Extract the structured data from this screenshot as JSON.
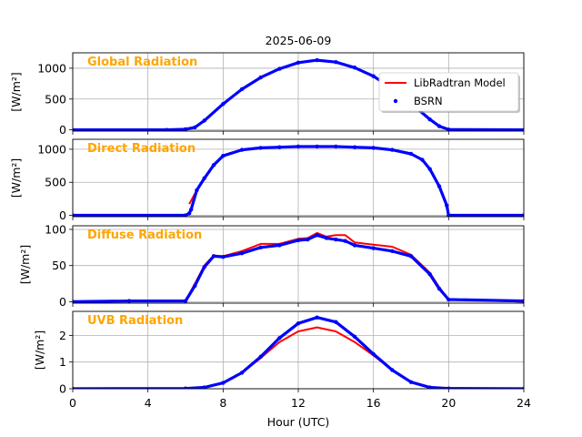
{
  "figure": {
    "title": "2025-06-09",
    "xlabel": "Hour (UTC)",
    "colors": {
      "model": "#ff0000",
      "observed": "#0000ff",
      "panel_title": "#ffa500",
      "grid": "#b0b0b0",
      "axes": "#000000"
    },
    "legend": {
      "location": "inside-right of first panel",
      "entries": [
        {
          "label": "LibRadtran Model",
          "style": "line",
          "color": "#ff0000"
        },
        {
          "label": "BSRN",
          "style": "dot",
          "color": "#0000ff"
        }
      ]
    }
  },
  "chart_data": [
    {
      "type": "line",
      "title": "Global Radiation",
      "xlabel": "Hour (UTC)",
      "ylabel": "[W/m²]",
      "xlim": [
        0,
        24
      ],
      "ylim": [
        -20,
        1250
      ],
      "xticks": [
        0,
        4,
        8,
        12,
        16,
        20,
        24
      ],
      "yticks": [
        0,
        500,
        1000
      ],
      "grid": true,
      "series": [
        {
          "name": "LibRadtran Model",
          "kind": "line",
          "x": [
            0,
            5,
            6,
            6.5,
            7,
            8,
            9,
            10,
            11,
            12,
            13,
            14,
            15,
            16,
            17,
            18,
            19,
            19.5,
            20,
            24
          ],
          "y": [
            0,
            0,
            10,
            40,
            150,
            420,
            660,
            850,
            990,
            1090,
            1130,
            1100,
            1010,
            870,
            670,
            430,
            170,
            60,
            5,
            0
          ]
        },
        {
          "name": "BSRN",
          "kind": "dots",
          "x": [
            0,
            5,
            6,
            6.5,
            7,
            8,
            9,
            10,
            11,
            12,
            13,
            14,
            15,
            16,
            17,
            18,
            19,
            19.5,
            20,
            24
          ],
          "y": [
            0,
            0,
            10,
            40,
            150,
            420,
            660,
            850,
            990,
            1090,
            1130,
            1100,
            1010,
            870,
            670,
            430,
            170,
            60,
            5,
            0
          ]
        }
      ]
    },
    {
      "type": "line",
      "title": "Direct Radiation",
      "xlabel": "Hour (UTC)",
      "ylabel": "[W/m²]",
      "xlim": [
        0,
        24
      ],
      "ylim": [
        -20,
        1150
      ],
      "xticks": [
        0,
        4,
        8,
        12,
        16,
        20,
        24
      ],
      "yticks": [
        0,
        500,
        1000
      ],
      "grid": true,
      "series": [
        {
          "name": "LibRadtran Model",
          "kind": "line",
          "x": [
            6.2,
            6.6,
            7,
            7.5,
            8,
            9,
            10,
            11,
            12,
            13,
            14,
            15,
            16,
            17,
            18,
            18.6,
            19,
            19.5,
            19.9,
            20
          ],
          "y": [
            170,
            380,
            560,
            760,
            900,
            990,
            1020,
            1030,
            1040,
            1040,
            1040,
            1030,
            1020,
            990,
            930,
            840,
            700,
            440,
            150,
            0
          ]
        },
        {
          "name": "BSRN",
          "kind": "dots",
          "x": [
            0,
            6.0,
            6.2,
            6.3,
            6.6,
            7,
            7.5,
            8,
            9,
            10,
            11,
            12,
            13,
            14,
            15,
            16,
            17,
            18,
            18.6,
            19,
            19.5,
            19.9,
            20,
            24
          ],
          "y": [
            0,
            0,
            30,
            90,
            380,
            560,
            760,
            900,
            990,
            1020,
            1030,
            1040,
            1040,
            1040,
            1030,
            1020,
            990,
            930,
            840,
            700,
            440,
            150,
            0,
            0
          ]
        }
      ]
    },
    {
      "type": "line",
      "title": "Diffuse Radiation",
      "xlabel": "Hour (UTC)",
      "ylabel": "[W/m²]",
      "xlim": [
        0,
        24
      ],
      "ylim": [
        -2,
        105
      ],
      "xticks": [
        0,
        4,
        8,
        12,
        16,
        20,
        24
      ],
      "yticks": [
        0,
        50,
        100
      ],
      "grid": true,
      "series": [
        {
          "name": "LibRadtran Model",
          "kind": "line",
          "x": [
            0,
            6,
            6.5,
            7,
            7.5,
            8,
            9,
            10,
            11,
            12,
            12.5,
            13,
            13.5,
            14,
            14.5,
            15,
            16,
            17,
            18,
            19,
            19.5,
            20,
            24
          ],
          "y": [
            0,
            1,
            25,
            50,
            64,
            63,
            70,
            80,
            80,
            87,
            88,
            95,
            90,
            92,
            92,
            82,
            79,
            76,
            65,
            40,
            20,
            3,
            0
          ]
        },
        {
          "name": "BSRN",
          "kind": "dots",
          "x": [
            0,
            3,
            6,
            6.5,
            7,
            7.5,
            8,
            9,
            10,
            11,
            12,
            12.5,
            13,
            13.5,
            14,
            14.5,
            15,
            16,
            17,
            18,
            19,
            19.5,
            20,
            24
          ],
          "y": [
            0,
            1,
            1,
            22,
            48,
            63,
            62,
            67,
            75,
            78,
            85,
            86,
            92,
            88,
            86,
            84,
            78,
            74,
            70,
            63,
            38,
            18,
            3,
            1
          ]
        }
      ]
    },
    {
      "type": "line",
      "title": "UVB Radiation",
      "xlabel": "Hour (UTC)",
      "ylabel": "[W/m²]",
      "xlim": [
        0,
        24
      ],
      "ylim": [
        0,
        2.9
      ],
      "xticks": [
        0,
        4,
        8,
        12,
        16,
        20,
        24
      ],
      "yticks": [
        0,
        1,
        2
      ],
      "grid": true,
      "series": [
        {
          "name": "LibRadtran Model",
          "kind": "line",
          "x": [
            0,
            6,
            7,
            8,
            9,
            10,
            11,
            12,
            13,
            14,
            15,
            16,
            17,
            18,
            19,
            20,
            24
          ],
          "y": [
            0,
            0.01,
            0.05,
            0.22,
            0.6,
            1.15,
            1.75,
            2.15,
            2.3,
            2.15,
            1.75,
            1.25,
            0.7,
            0.25,
            0.05,
            0.01,
            0
          ]
        },
        {
          "name": "BSRN",
          "kind": "dots",
          "x": [
            0,
            6,
            7,
            8,
            9,
            10,
            11,
            12,
            13,
            14,
            15,
            16,
            17,
            18,
            19,
            20,
            24
          ],
          "y": [
            0,
            0.01,
            0.05,
            0.22,
            0.6,
            1.2,
            1.9,
            2.45,
            2.67,
            2.5,
            1.95,
            1.3,
            0.7,
            0.25,
            0.05,
            0.01,
            0
          ]
        }
      ]
    }
  ]
}
